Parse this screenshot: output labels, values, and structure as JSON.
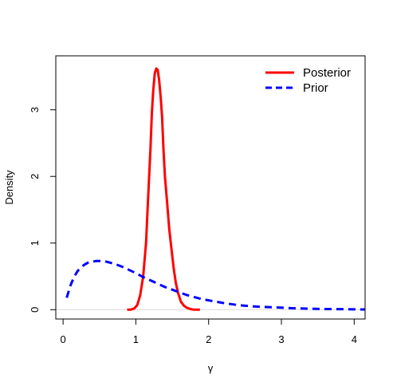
{
  "chart_data": {
    "type": "line",
    "title": "",
    "xlabel": "γ",
    "ylabel": "Density",
    "xlim": [
      -0.1,
      4.15
    ],
    "ylim": [
      -0.14,
      3.81
    ],
    "xticks": [
      0,
      1,
      2,
      3,
      4
    ],
    "yticks": [
      0,
      1,
      2,
      3
    ],
    "grid": false,
    "legend_position": "top-right",
    "zero_line": true,
    "series": [
      {
        "name": "Posterior",
        "color": "#ff0000",
        "style": "solid",
        "x": [
          0.88,
          0.93,
          0.98,
          1.02,
          1.06,
          1.1,
          1.14,
          1.17,
          1.2,
          1.22,
          1.24,
          1.26,
          1.28,
          1.3,
          1.32,
          1.34,
          1.36,
          1.38,
          1.4,
          1.43,
          1.46,
          1.49,
          1.52,
          1.55,
          1.58,
          1.62,
          1.66,
          1.7,
          1.75,
          1.8,
          1.88
        ],
        "y": [
          0.0,
          0.0,
          0.02,
          0.07,
          0.22,
          0.5,
          1.0,
          1.7,
          2.4,
          2.95,
          3.3,
          3.55,
          3.62,
          3.6,
          3.45,
          3.2,
          2.9,
          2.4,
          2.0,
          1.6,
          1.2,
          0.9,
          0.62,
          0.4,
          0.25,
          0.12,
          0.06,
          0.03,
          0.01,
          0.0,
          0.0
        ]
      },
      {
        "name": "Prior",
        "color": "#0000ff",
        "style": "dashed",
        "x": [
          0.05,
          0.1,
          0.15,
          0.2,
          0.25,
          0.3,
          0.35,
          0.4,
          0.45,
          0.5,
          0.55,
          0.6,
          0.7,
          0.8,
          0.9,
          1.0,
          1.1,
          1.2,
          1.3,
          1.4,
          1.5,
          1.6,
          1.7,
          1.8,
          1.9,
          2.0,
          2.2,
          2.4,
          2.6,
          2.8,
          3.0,
          3.2,
          3.4,
          3.6,
          3.8,
          4.0,
          4.15
        ],
        "y": [
          0.18,
          0.36,
          0.49,
          0.58,
          0.64,
          0.68,
          0.71,
          0.72,
          0.73,
          0.73,
          0.73,
          0.72,
          0.69,
          0.65,
          0.6,
          0.55,
          0.49,
          0.44,
          0.39,
          0.34,
          0.3,
          0.26,
          0.22,
          0.19,
          0.16,
          0.14,
          0.1,
          0.07,
          0.05,
          0.04,
          0.03,
          0.02,
          0.015,
          0.01,
          0.008,
          0.005,
          0.004
        ]
      }
    ]
  }
}
